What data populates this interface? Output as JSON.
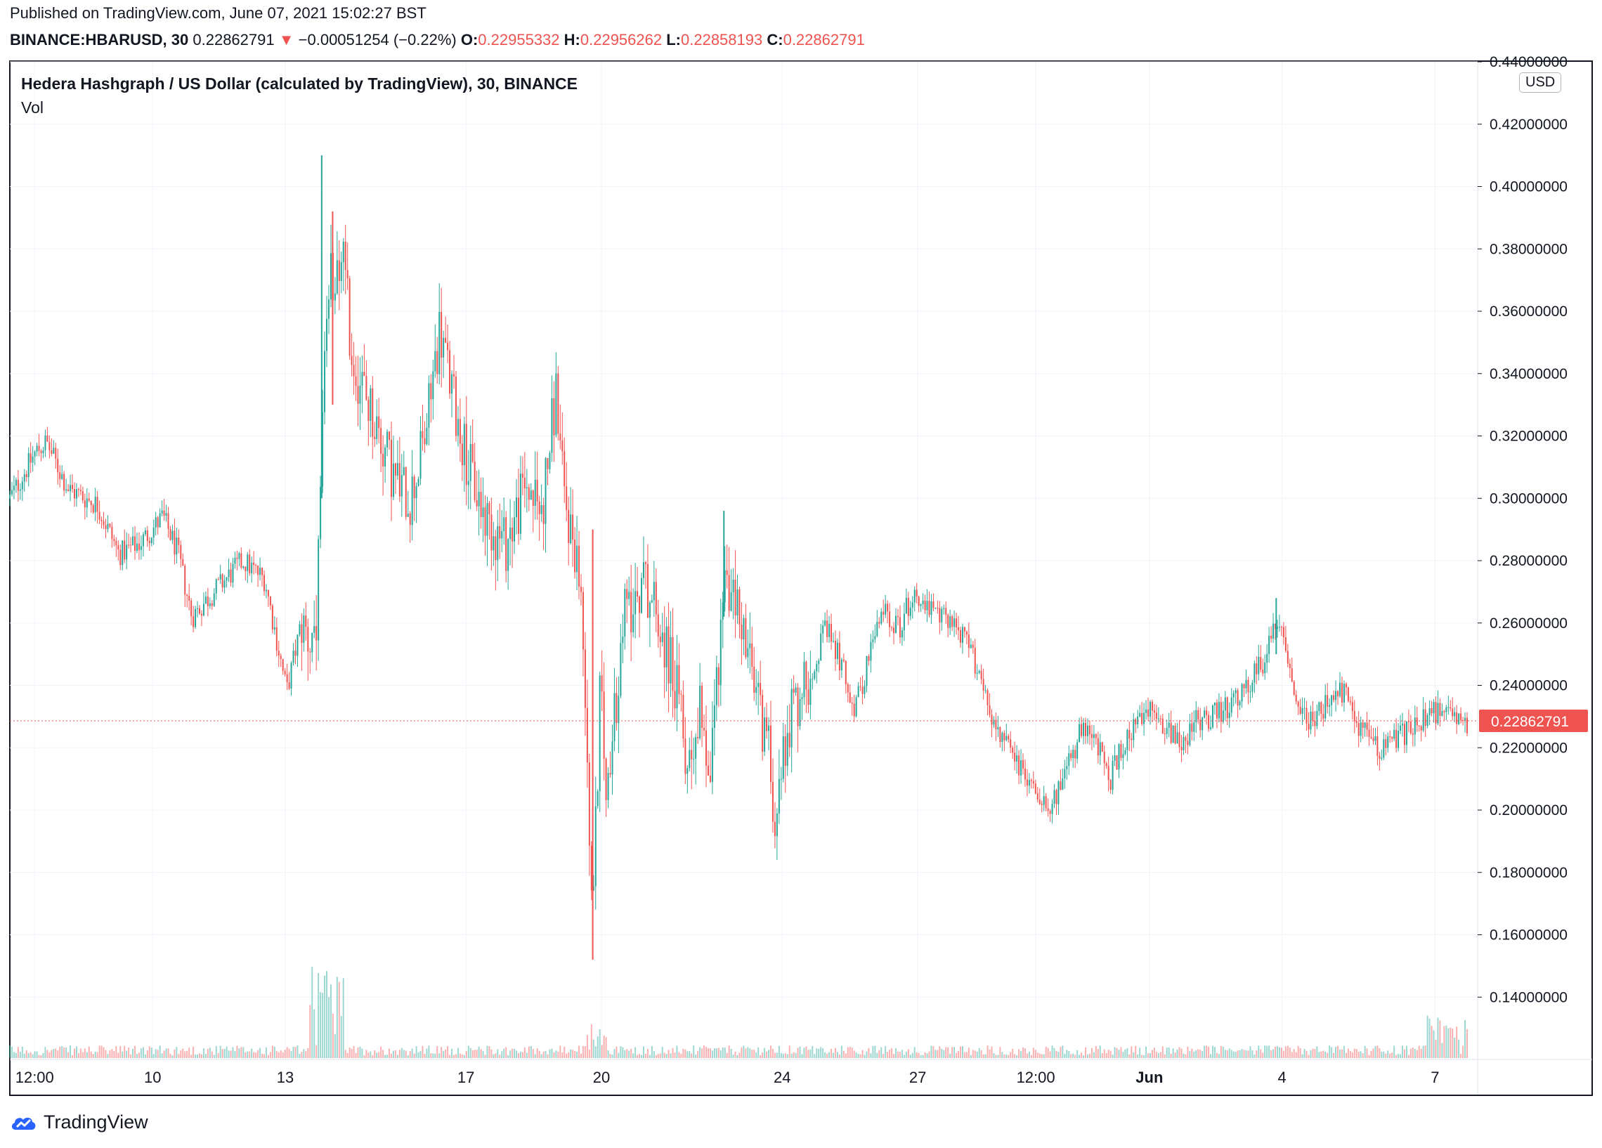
{
  "header": {
    "published": "Published on TradingView.com, June 07, 2021 15:02:27 BST",
    "symbol": "BINANCE:HBARUSD, 30",
    "last": "0.22862791",
    "arrow": "▼",
    "change": "−0.00051254 (−0.22%)",
    "o_label": "O:",
    "o_value": "0.22955332",
    "h_label": "H:",
    "h_value": "0.22956262",
    "l_label": "L:",
    "l_value": "0.22858193",
    "c_label": "C:",
    "c_value": "0.22862791"
  },
  "chart_title": "Hedera Hashgraph / US Dollar (calculated by TradingView), 30, BINANCE",
  "volume_label": "Vol",
  "currency_badge": "USD",
  "last_price_tag": "0.22862791",
  "brand": "TradingView",
  "colors": {
    "up": "#26a69a",
    "down": "#ef5350",
    "grid": "#f0f3fa",
    "text": "#131722"
  },
  "chart_data": {
    "type": "candlestick",
    "title": "Hedera Hashgraph / US Dollar (calculated by TradingView), 30, BINANCE",
    "interval": "30",
    "ylim": [
      0.12,
      0.44
    ],
    "y_ticks": [
      "0.44000000",
      "0.42000000",
      "0.40000000",
      "0.38000000",
      "0.36000000",
      "0.34000000",
      "0.32000000",
      "0.30000000",
      "0.28000000",
      "0.26000000",
      "0.24000000",
      "0.22000000",
      "0.20000000",
      "0.18000000",
      "0.16000000",
      "0.14000000"
    ],
    "y_tick_values": [
      0.44,
      0.42,
      0.4,
      0.38,
      0.36,
      0.34,
      0.32,
      0.3,
      0.28,
      0.26,
      0.24,
      0.22,
      0.2,
      0.18,
      0.16,
      0.14
    ],
    "x_ticks": [
      {
        "label": "12:00",
        "t": 0.017,
        "bold": false
      },
      {
        "label": "10",
        "t": 0.098,
        "bold": false
      },
      {
        "label": "13",
        "t": 0.189,
        "bold": false
      },
      {
        "label": "17",
        "t": 0.313,
        "bold": false
      },
      {
        "label": "20",
        "t": 0.406,
        "bold": false
      },
      {
        "label": "24",
        "t": 0.53,
        "bold": false
      },
      {
        "label": "27",
        "t": 0.623,
        "bold": false
      },
      {
        "label": "12:00",
        "t": 0.704,
        "bold": false
      },
      {
        "label": "Jun",
        "t": 0.782,
        "bold": true
      },
      {
        "label": "4",
        "t": 0.873,
        "bold": false
      },
      {
        "label": "7",
        "t": 0.978,
        "bold": false
      }
    ],
    "price_path": [
      [
        0.0,
        0.3
      ],
      [
        0.018,
        0.315
      ],
      [
        0.025,
        0.318
      ],
      [
        0.04,
        0.303
      ],
      [
        0.06,
        0.298
      ],
      [
        0.075,
        0.282
      ],
      [
        0.09,
        0.286
      ],
      [
        0.105,
        0.294
      ],
      [
        0.115,
        0.283
      ],
      [
        0.125,
        0.262
      ],
      [
        0.14,
        0.27
      ],
      [
        0.16,
        0.28
      ],
      [
        0.175,
        0.274
      ],
      [
        0.185,
        0.25
      ],
      [
        0.19,
        0.238
      ],
      [
        0.2,
        0.26
      ],
      [
        0.21,
        0.25
      ],
      [
        0.215,
        0.33
      ],
      [
        0.22,
        0.37
      ],
      [
        0.228,
        0.38
      ],
      [
        0.235,
        0.345
      ],
      [
        0.25,
        0.325
      ],
      [
        0.265,
        0.305
      ],
      [
        0.275,
        0.3
      ],
      [
        0.285,
        0.32
      ],
      [
        0.295,
        0.355
      ],
      [
        0.305,
        0.33
      ],
      [
        0.315,
        0.31
      ],
      [
        0.325,
        0.295
      ],
      [
        0.34,
        0.285
      ],
      [
        0.355,
        0.305
      ],
      [
        0.365,
        0.295
      ],
      [
        0.375,
        0.335
      ],
      [
        0.38,
        0.3
      ],
      [
        0.39,
        0.28
      ],
      [
        0.395,
        0.24
      ],
      [
        0.4,
        0.16
      ],
      [
        0.405,
        0.24
      ],
      [
        0.41,
        0.2
      ],
      [
        0.415,
        0.23
      ],
      [
        0.42,
        0.26
      ],
      [
        0.435,
        0.275
      ],
      [
        0.445,
        0.262
      ],
      [
        0.455,
        0.245
      ],
      [
        0.465,
        0.215
      ],
      [
        0.475,
        0.235
      ],
      [
        0.48,
        0.21
      ],
      [
        0.49,
        0.272
      ],
      [
        0.5,
        0.265
      ],
      [
        0.51,
        0.24
      ],
      [
        0.52,
        0.222
      ],
      [
        0.525,
        0.2
      ],
      [
        0.535,
        0.23
      ],
      [
        0.55,
        0.245
      ],
      [
        0.56,
        0.258
      ],
      [
        0.57,
        0.248
      ],
      [
        0.58,
        0.232
      ],
      [
        0.59,
        0.25
      ],
      [
        0.6,
        0.265
      ],
      [
        0.61,
        0.258
      ],
      [
        0.62,
        0.27
      ],
      [
        0.635,
        0.262
      ],
      [
        0.645,
        0.262
      ],
      [
        0.655,
        0.255
      ],
      [
        0.665,
        0.245
      ],
      [
        0.675,
        0.228
      ],
      [
        0.685,
        0.22
      ],
      [
        0.695,
        0.212
      ],
      [
        0.705,
        0.206
      ],
      [
        0.715,
        0.202
      ],
      [
        0.725,
        0.212
      ],
      [
        0.735,
        0.225
      ],
      [
        0.745,
        0.222
      ],
      [
        0.755,
        0.21
      ],
      [
        0.765,
        0.222
      ],
      [
        0.775,
        0.228
      ],
      [
        0.785,
        0.232
      ],
      [
        0.795,
        0.226
      ],
      [
        0.805,
        0.222
      ],
      [
        0.815,
        0.229
      ],
      [
        0.83,
        0.231
      ],
      [
        0.845,
        0.236
      ],
      [
        0.86,
        0.248
      ],
      [
        0.868,
        0.258
      ],
      [
        0.873,
        0.262
      ],
      [
        0.88,
        0.24
      ],
      [
        0.89,
        0.228
      ],
      [
        0.905,
        0.234
      ],
      [
        0.915,
        0.238
      ],
      [
        0.925,
        0.228
      ],
      [
        0.94,
        0.22
      ],
      [
        0.955,
        0.224
      ],
      [
        0.97,
        0.23
      ],
      [
        0.985,
        0.232
      ],
      [
        1.0,
        0.2286
      ]
    ],
    "last_price": 0.22862791
  }
}
